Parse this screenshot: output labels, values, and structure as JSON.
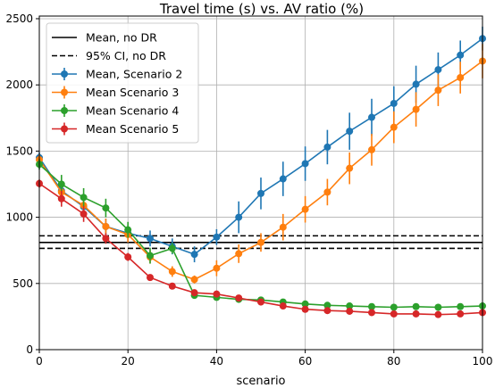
{
  "chart_data": {
    "type": "line",
    "title": "Travel time (s) vs. AV ratio (%)",
    "xlabel": "scenario",
    "ylabel": "",
    "xlim": [
      0,
      100
    ],
    "ylim": [
      0,
      2520
    ],
    "xticks": [
      0,
      20,
      40,
      60,
      80,
      100
    ],
    "yticks": [
      0,
      500,
      1000,
      1500,
      2000,
      2500
    ],
    "grid": true,
    "legend_position": "top-left",
    "reference_lines": [
      {
        "name": "Mean, no DR",
        "y": 810,
        "style": "solid",
        "color": "#000000"
      },
      {
        "name": "95% CI, no DR",
        "y": [
          765,
          860
        ],
        "style": "dashed",
        "color": "#000000"
      }
    ],
    "x": [
      0,
      5,
      10,
      15,
      20,
      25,
      30,
      35,
      40,
      45,
      50,
      55,
      60,
      65,
      70,
      75,
      80,
      85,
      90,
      95,
      100
    ],
    "series": [
      {
        "name": "Mean, Scenario 2",
        "color": "#1f77b4",
        "values": [
          1450,
          1200,
          1080,
          930,
          880,
          840,
          780,
          720,
          850,
          1000,
          1180,
          1290,
          1405,
          1530,
          1650,
          1755,
          1860,
          2005,
          2115,
          2225,
          2350
        ],
        "errors": [
          40,
          60,
          70,
          60,
          60,
          60,
          60,
          60,
          60,
          120,
          120,
          130,
          130,
          130,
          140,
          140,
          130,
          140,
          130,
          110,
          90
        ]
      },
      {
        "name": "Mean Scenario 3",
        "color": "#ff7f0e",
        "values": [
          1435,
          1190,
          1090,
          930,
          870,
          700,
          590,
          530,
          615,
          725,
          810,
          925,
          1060,
          1190,
          1370,
          1510,
          1680,
          1815,
          1960,
          2055,
          2180
        ],
        "errors": [
          40,
          60,
          70,
          60,
          60,
          50,
          40,
          30,
          60,
          70,
          70,
          100,
          100,
          100,
          120,
          120,
          120,
          130,
          120,
          120,
          130
        ]
      },
      {
        "name": "Mean Scenario 4",
        "color": "#2ca02c",
        "values": [
          1400,
          1250,
          1150,
          1070,
          905,
          710,
          765,
          410,
          395,
          380,
          375,
          360,
          345,
          335,
          330,
          325,
          320,
          325,
          320,
          325,
          330
        ],
        "errors": [
          40,
          70,
          70,
          70,
          60,
          60,
          40,
          20,
          20,
          20,
          20,
          20,
          20,
          20,
          20,
          20,
          20,
          20,
          20,
          20,
          20
        ]
      },
      {
        "name": "Mean Scenario 5",
        "color": "#d62728",
        "values": [
          1255,
          1140,
          1025,
          840,
          700,
          545,
          480,
          430,
          420,
          390,
          360,
          330,
          305,
          295,
          290,
          280,
          270,
          270,
          265,
          270,
          280
        ],
        "errors": [
          30,
          60,
          60,
          40,
          30,
          20,
          20,
          20,
          20,
          20,
          20,
          20,
          20,
          20,
          20,
          20,
          20,
          20,
          20,
          20,
          20
        ]
      }
    ]
  }
}
